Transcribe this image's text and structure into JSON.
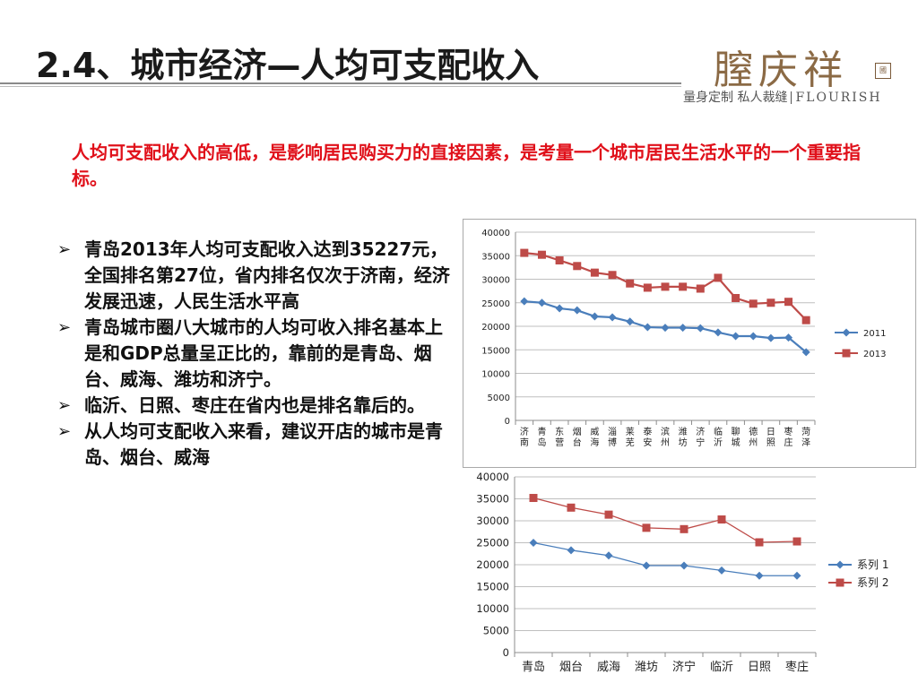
{
  "header": {
    "title": "2.4、城市经济—人均可支配收入",
    "logo_main": "膣庆祥",
    "logo_seal": "國",
    "logo_sub_cn": "量身定制 私人裁缝",
    "logo_sub_en": "FLOURISH"
  },
  "intro": "人均可支配收入的高低，是影响居民购买力的直接因素，是考量一个城市居民生活水平的一个重要指标。",
  "bullets": [
    {
      "marker": "➢",
      "text": "青岛2013年人均可支配收入达到35227元，全国排名第27位，省内排名仅次于济南，经济发展迅速，人民生活水平高"
    },
    {
      "marker": "➢",
      "text": "青岛城市圈八大城市的人均可收入排名基本上是和GDP总量呈正比的，靠前的是青岛、烟台、威海、潍坊和济宁。"
    },
    {
      "marker": "➢",
      "text": "临沂、日照、枣庄在省内也是排名靠后的。"
    },
    {
      "marker": "➢",
      "text": "从人均可支配收入来看，建议开店的城市是青岛、烟台、威海"
    }
  ],
  "chart_data": [
    {
      "type": "line",
      "categories": [
        "济南",
        "青岛",
        "东营",
        "烟台",
        "威海",
        "淄博",
        "莱芜",
        "泰安",
        "滨州",
        "潍坊",
        "济宁",
        "临沂",
        "聊城",
        "德州",
        "日照",
        "枣庄",
        "菏泽"
      ],
      "series": [
        {
          "name": "2011",
          "color": "#4a7ebb",
          "marker": "diamond",
          "values": [
            25300,
            25000,
            23800,
            23400,
            22100,
            21900,
            21000,
            19800,
            19700,
            19700,
            19600,
            18700,
            17900,
            17900,
            17500,
            17600,
            14500
          ]
        },
        {
          "name": "2013",
          "color": "#be4b48",
          "marker": "square",
          "values": [
            35600,
            35200,
            34000,
            32800,
            31400,
            30900,
            29100,
            28200,
            28400,
            28400,
            28000,
            30300,
            26000,
            24800,
            25000,
            25200,
            21300
          ]
        }
      ],
      "ylim": [
        0,
        40000
      ],
      "yticks": [
        "40000",
        "35000",
        "30000",
        "25000",
        "20000",
        "15000",
        "10000",
        "5000",
        "0"
      ],
      "grid": true,
      "legend": "right",
      "x_label_orientation": "vertical"
    },
    {
      "type": "line",
      "categories": [
        "青岛",
        "烟台",
        "威海",
        "潍坊",
        "济宁",
        "临沂",
        "日照",
        "枣庄"
      ],
      "series": [
        {
          "name": "系列 1",
          "color": "#4a7ebb",
          "marker": "diamond",
          "values": [
            25000,
            23300,
            22100,
            19800,
            19800,
            18700,
            17500,
            17500
          ]
        },
        {
          "name": "系列 2",
          "color": "#be4b48",
          "marker": "square",
          "values": [
            35200,
            33000,
            31400,
            28400,
            28100,
            30300,
            25100,
            25300
          ]
        }
      ],
      "ylim": [
        0,
        40000
      ],
      "yticks": [
        "40000",
        "35000",
        "30000",
        "25000",
        "20000",
        "15000",
        "10000",
        "5000",
        "0"
      ],
      "grid": true,
      "legend": "right",
      "x_label_orientation": "horizontal"
    }
  ]
}
